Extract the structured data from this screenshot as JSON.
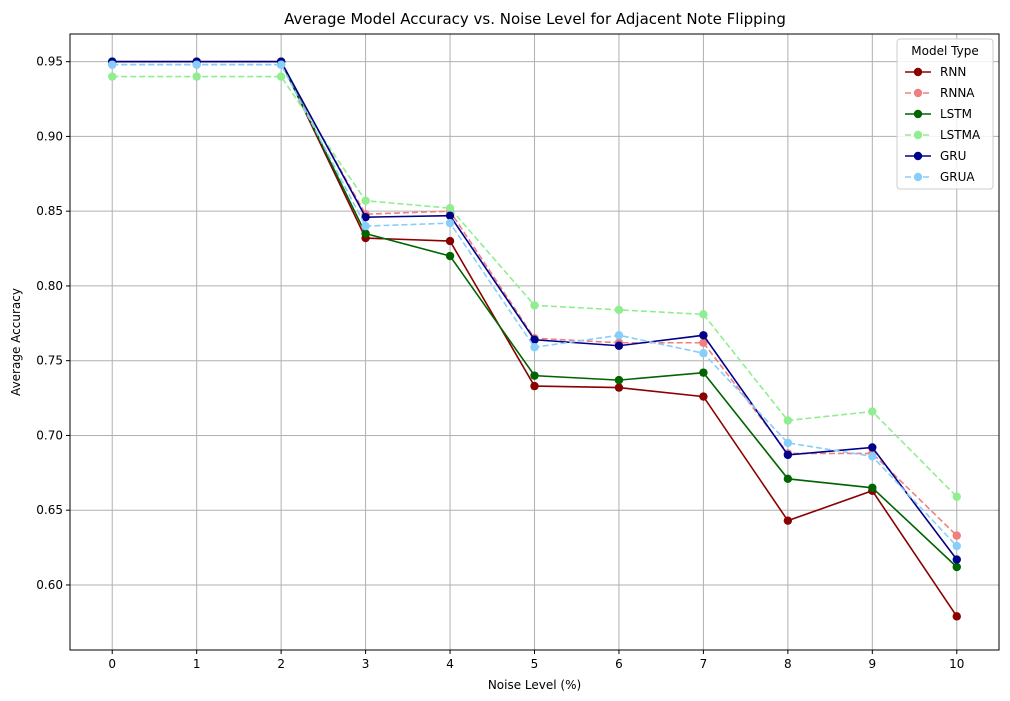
{
  "chart_data": {
    "type": "line",
    "title": "Average Model Accuracy vs. Noise Level for Adjacent Note Flipping",
    "xlabel": "Noise Level (%)",
    "ylabel": "Average Accuracy",
    "x": [
      0,
      1,
      2,
      3,
      4,
      5,
      6,
      7,
      8,
      9,
      10
    ],
    "xlim": [
      -0.5,
      10.5
    ],
    "ylim": [
      0.5565,
      0.9685
    ],
    "yticks": [
      0.6,
      0.65,
      0.7,
      0.75,
      0.8,
      0.85,
      0.9,
      0.95
    ],
    "ytick_labels": [
      "0.60",
      "0.65",
      "0.70",
      "0.75",
      "0.80",
      "0.85",
      "0.90",
      "0.95"
    ],
    "xtick_labels": [
      "0",
      "1",
      "2",
      "3",
      "4",
      "5",
      "6",
      "7",
      "8",
      "9",
      "10"
    ],
    "grid": true,
    "legend": {
      "title": "Model Type",
      "placement": "top-right"
    },
    "series": [
      {
        "name": "RNN",
        "color": "#8b0000",
        "dashed": false,
        "values": [
          0.95,
          0.95,
          0.95,
          0.832,
          0.83,
          0.733,
          0.732,
          0.726,
          0.643,
          0.663,
          0.579
        ]
      },
      {
        "name": "RNNA",
        "color": "#f08080",
        "dashed": true,
        "values": [
          0.948,
          0.948,
          0.948,
          0.848,
          0.85,
          0.765,
          0.762,
          0.762,
          0.688,
          0.688,
          0.633
        ]
      },
      {
        "name": "LSTM",
        "color": "#006400",
        "dashed": false,
        "values": [
          0.95,
          0.95,
          0.95,
          0.835,
          0.82,
          0.74,
          0.737,
          0.742,
          0.671,
          0.665,
          0.612
        ]
      },
      {
        "name": "LSTMA",
        "color": "#90ee90",
        "dashed": true,
        "values": [
          0.94,
          0.94,
          0.94,
          0.857,
          0.852,
          0.787,
          0.784,
          0.781,
          0.71,
          0.716,
          0.659
        ]
      },
      {
        "name": "GRU",
        "color": "#00008b",
        "dashed": false,
        "values": [
          0.95,
          0.95,
          0.95,
          0.846,
          0.847,
          0.764,
          0.76,
          0.767,
          0.687,
          0.692,
          0.617
        ]
      },
      {
        "name": "GRUA",
        "color": "#87cefa",
        "dashed": true,
        "values": [
          0.948,
          0.948,
          0.948,
          0.84,
          0.842,
          0.759,
          0.767,
          0.755,
          0.695,
          0.686,
          0.626
        ]
      }
    ]
  }
}
